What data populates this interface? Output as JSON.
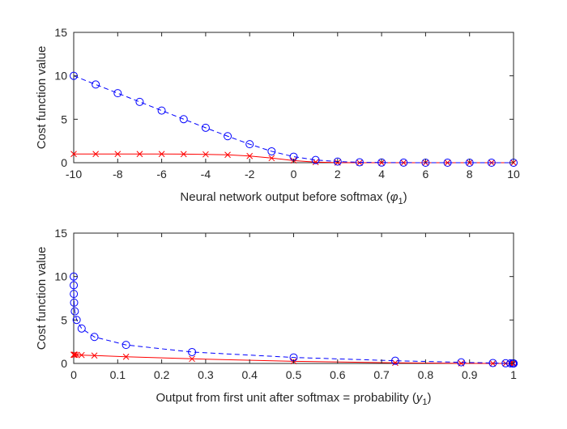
{
  "chart_data": [
    {
      "type": "line",
      "xlabel": "Neural network output before softmax (",
      "xlabel_symbol": "φ",
      "xlabel_subscript": "1",
      "xlabel_suffix": ")",
      "ylabel": "Cost function value",
      "xlim": [
        -10,
        10
      ],
      "ylim": [
        0,
        15
      ],
      "xticks": [
        "-10",
        "-8",
        "-6",
        "-4",
        "-2",
        "0",
        "2",
        "4",
        "6",
        "8",
        "10"
      ],
      "yticks": [
        "0",
        "5",
        "10",
        "15"
      ],
      "grid": false,
      "series": [
        {
          "color": "#0000ff",
          "line_style": "dashed",
          "marker": "circle",
          "x": [
            -10,
            -9,
            -8,
            -7,
            -6,
            -5,
            -4,
            -3,
            -2,
            -1,
            0,
            1,
            2,
            3,
            4,
            5,
            6,
            7,
            8,
            9,
            10
          ],
          "y": [
            10.0,
            9.0,
            8.0,
            7.0,
            6.0,
            5.01,
            4.02,
            3.05,
            2.13,
            1.31,
            0.69,
            0.31,
            0.13,
            0.05,
            0.02,
            0.01,
            0.0,
            0.0,
            0.0,
            0.0,
            0.0
          ]
        },
        {
          "color": "#ff0000",
          "line_style": "solid",
          "marker": "x",
          "x": [
            -10,
            -9,
            -8,
            -7,
            -6,
            -5,
            -4,
            -3,
            -2,
            -1,
            0,
            1,
            2,
            3,
            4,
            5,
            6,
            7,
            8,
            9,
            10
          ],
          "y": [
            1.0,
            1.0,
            1.0,
            1.0,
            1.0,
            0.99,
            0.96,
            0.91,
            0.77,
            0.53,
            0.25,
            0.07,
            0.01,
            0.0,
            0.0,
            0.0,
            0.0,
            0.0,
            0.0,
            0.0,
            0.0
          ]
        }
      ]
    },
    {
      "type": "line",
      "xlabel": "Output from first unit after softmax = probability (",
      "xlabel_symbol": "y",
      "xlabel_subscript": "1",
      "xlabel_suffix": ")",
      "ylabel": "Cost function value",
      "xlim": [
        0,
        1
      ],
      "ylim": [
        0,
        15
      ],
      "xticks": [
        "0",
        "0.1",
        "0.2",
        "0.3",
        "0.4",
        "0.5",
        "0.6",
        "0.7",
        "0.8",
        "0.9",
        "1"
      ],
      "yticks": [
        "0",
        "5",
        "10",
        "15"
      ],
      "grid": false,
      "series": [
        {
          "color": "#0000ff",
          "line_style": "dashed",
          "marker": "circle",
          "x": [
            0.0,
            0.0001,
            0.0003,
            0.0009,
            0.0025,
            0.0067,
            0.018,
            0.047,
            0.119,
            0.269,
            0.5,
            0.731,
            0.881,
            0.953,
            0.982,
            0.993,
            0.998,
            0.999,
            1.0,
            1.0,
            1.0
          ],
          "y": [
            10.0,
            9.0,
            8.0,
            7.0,
            6.0,
            5.01,
            4.02,
            3.05,
            2.13,
            1.31,
            0.69,
            0.31,
            0.13,
            0.05,
            0.02,
            0.01,
            0.0,
            0.0,
            0.0,
            0.0,
            0.0
          ]
        },
        {
          "color": "#ff0000",
          "line_style": "solid",
          "marker": "x",
          "x": [
            0.0,
            0.0001,
            0.0003,
            0.0009,
            0.0025,
            0.0067,
            0.018,
            0.047,
            0.119,
            0.269,
            0.5,
            0.731,
            0.881,
            0.953,
            0.982,
            0.993,
            0.998,
            0.999,
            1.0,
            1.0,
            1.0
          ],
          "y": [
            1.0,
            1.0,
            1.0,
            1.0,
            1.0,
            0.99,
            0.96,
            0.91,
            0.77,
            0.53,
            0.25,
            0.07,
            0.01,
            0.0,
            0.0,
            0.0,
            0.0,
            0.0,
            0.0,
            0.0,
            0.0
          ]
        }
      ]
    }
  ]
}
